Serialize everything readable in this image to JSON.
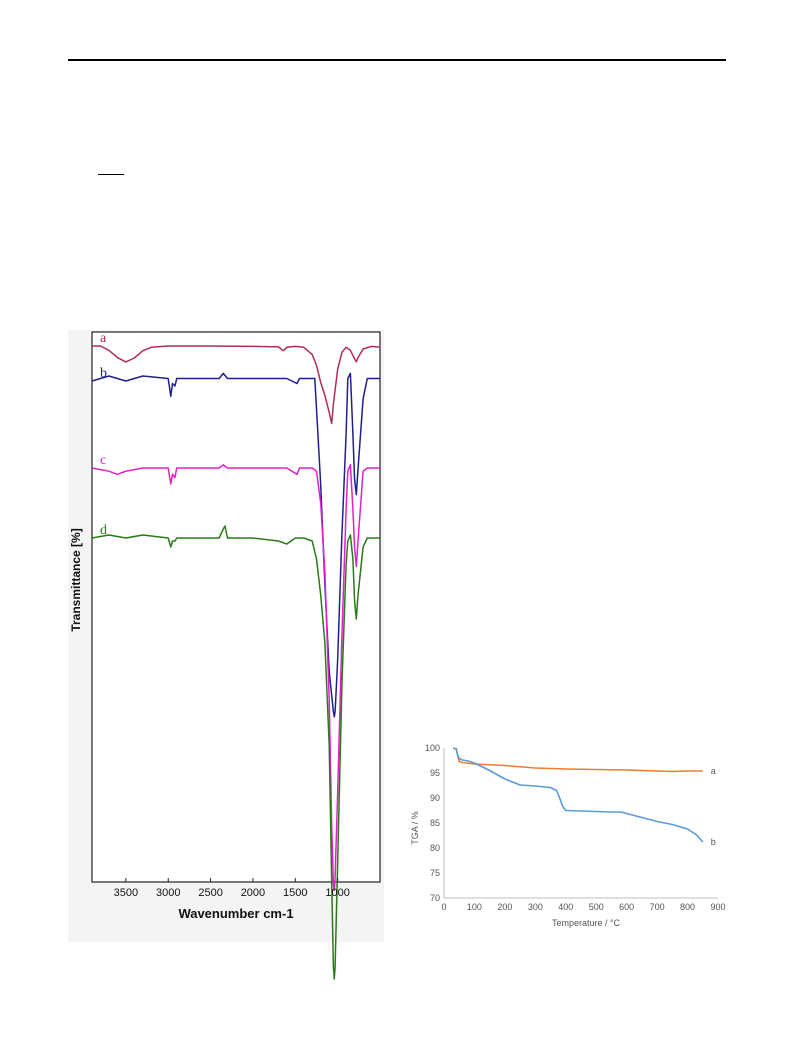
{
  "chart_data": [
    {
      "type": "line",
      "xlabel": "Wavenumber cm-1",
      "ylabel": "Transmittance [%]",
      "x_ticks": [
        3500,
        3000,
        2500,
        2000,
        1500,
        1000
      ],
      "xlim": [
        3900,
        500
      ],
      "x_reversed": true,
      "y_ticks_shown": false,
      "series": [
        {
          "name": "a",
          "color": "#b22d55",
          "x": [
            3900,
            3800,
            3700,
            3600,
            3500,
            3400,
            3300,
            3200,
            3000,
            2500,
            2000,
            1700,
            1640,
            1600,
            1500,
            1400,
            1300,
            1250,
            1200,
            1150,
            1100,
            1070,
            1050,
            1000,
            950,
            900,
            850,
            800,
            780,
            760,
            700,
            600,
            500
          ],
          "y": [
            0.5,
            0.5,
            1.5,
            3.2,
            4.2,
            3.3,
            1.6,
            0.8,
            0.5,
            0.5,
            0.6,
            0.7,
            1.6,
            0.8,
            0.6,
            0.8,
            2.5,
            5,
            9,
            12,
            16,
            18.5,
            14,
            6,
            2,
            0.8,
            1.5,
            3.5,
            4.2,
            3.2,
            1.2,
            0.6,
            0.8
          ]
        },
        {
          "name": "b",
          "color": "#1f1f8f",
          "x": [
            3900,
            3700,
            3500,
            3300,
            3000,
            2970,
            2950,
            2920,
            2900,
            2800,
            2400,
            2350,
            2300,
            2000,
            1600,
            1480,
            1450,
            1400,
            1300,
            1270,
            1250,
            1200,
            1150,
            1100,
            1050,
            1040,
            1030,
            1000,
            950,
            900,
            880,
            850,
            820,
            800,
            780,
            760,
            700,
            650,
            600,
            500
          ],
          "y": [
            4.5,
            3.5,
            4.5,
            3.5,
            4,
            7.5,
            5,
            5.5,
            4,
            4,
            4,
            3,
            4,
            4,
            4,
            5,
            4,
            4,
            4,
            4,
            10,
            25,
            45,
            62,
            70,
            71,
            70,
            60,
            35,
            15,
            4,
            3,
            15,
            24,
            27,
            22,
            8,
            4,
            4,
            4
          ]
        },
        {
          "name": "c",
          "color": "#e31fc9",
          "x": [
            3900,
            3700,
            3600,
            3500,
            3300,
            3000,
            2970,
            2950,
            2920,
            2900,
            2800,
            2400,
            2350,
            2300,
            2000,
            1600,
            1480,
            1450,
            1400,
            1300,
            1250,
            1200,
            1150,
            1100,
            1070,
            1050,
            1040,
            1030,
            1000,
            950,
            900,
            880,
            850,
            820,
            800,
            780,
            760,
            700,
            650,
            600,
            500
          ],
          "y": [
            13.5,
            14,
            14.5,
            14,
            13.5,
            13.5,
            16,
            14.5,
            15,
            13.5,
            13.5,
            13.5,
            13,
            13.5,
            13.5,
            13.5,
            14.5,
            13.5,
            13.5,
            13.5,
            14,
            19,
            30,
            50,
            70,
            79,
            80,
            78,
            65,
            40,
            20,
            14,
            13,
            20,
            26,
            29,
            25,
            14,
            13.5,
            13.5,
            13.5
          ]
        },
        {
          "name": "d",
          "color": "#2a7a1a",
          "x": [
            3900,
            3700,
            3500,
            3300,
            3000,
            2970,
            2950,
            2920,
            2900,
            2800,
            2400,
            2350,
            2330,
            2300,
            2000,
            1700,
            1600,
            1500,
            1400,
            1300,
            1250,
            1200,
            1150,
            1100,
            1070,
            1050,
            1040,
            1030,
            1000,
            950,
            900,
            880,
            850,
            820,
            800,
            780,
            760,
            700,
            650,
            600,
            500
          ],
          "y": [
            20.5,
            20,
            20.5,
            20,
            20.5,
            22,
            21,
            21,
            20.5,
            20.5,
            20.5,
            19,
            18.5,
            20.5,
            20.5,
            21,
            21.5,
            20.5,
            20.5,
            21,
            24,
            30,
            38,
            55,
            78,
            92,
            94,
            92,
            75,
            45,
            25,
            21,
            20,
            24,
            31,
            34,
            30,
            22,
            20.5,
            20.5,
            20.5
          ]
        }
      ]
    },
    {
      "type": "line",
      "xlabel": "Temperature / °C",
      "ylabel": "TGA / %",
      "x_ticks": [
        0,
        100,
        200,
        300,
        400,
        500,
        600,
        700,
        800,
        900
      ],
      "y_ticks": [
        70,
        75,
        80,
        85,
        90,
        95,
        100
      ],
      "xlim": [
        0,
        900
      ],
      "ylim": [
        70,
        100
      ],
      "grid": false,
      "series": [
        {
          "name": "a",
          "color": "#ed7d31",
          "x": [
            40,
            45,
            50,
            60,
            100,
            200,
            300,
            400,
            500,
            600,
            650,
            700,
            750,
            800,
            850
          ],
          "y": [
            100,
            98.5,
            97.3,
            97.1,
            96.8,
            96.5,
            96.0,
            95.8,
            95.7,
            95.6,
            95.5,
            95.4,
            95.3,
            95.4,
            95.4
          ]
        },
        {
          "name": "b",
          "color": "#5b9bd5",
          "x": [
            30,
            40,
            45,
            50,
            60,
            80,
            100,
            150,
            200,
            250,
            300,
            350,
            370,
            380,
            390,
            400,
            450,
            500,
            550,
            580,
            600,
            650,
            700,
            750,
            800,
            830,
            850
          ],
          "y": [
            100,
            99.8,
            98.5,
            97.9,
            97.6,
            97.4,
            97.0,
            95.5,
            93.8,
            92.6,
            92.4,
            92.1,
            91.5,
            90.0,
            88.3,
            87.5,
            87.4,
            87.3,
            87.2,
            87.2,
            86.9,
            86.1,
            85.3,
            84.7,
            83.8,
            82.6,
            81.2
          ]
        }
      ]
    }
  ]
}
